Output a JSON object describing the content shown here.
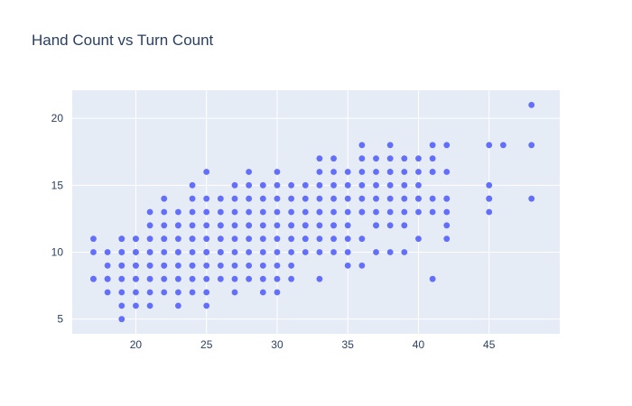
{
  "chart_data": {
    "type": "scatter",
    "title": "Hand Count vs Turn Count",
    "xlabel": "",
    "ylabel": "",
    "xlim": [
      15.5,
      50
    ],
    "ylim": [
      3.9,
      22.1
    ],
    "xticks": [
      20,
      25,
      30,
      35,
      40,
      45
    ],
    "yticks": [
      5,
      10,
      15,
      20
    ],
    "grid": true,
    "colors": {
      "marker": "#636efa",
      "plot_background": "#e5ecf6",
      "text": "#2a3f5f"
    },
    "x": [
      17,
      17,
      17,
      17,
      18,
      18,
      18,
      18,
      18,
      19,
      19,
      19,
      19,
      19,
      19,
      19,
      19,
      19,
      19,
      20,
      20,
      20,
      20,
      20,
      20,
      20,
      20,
      20,
      20,
      21,
      21,
      21,
      21,
      21,
      21,
      21,
      21,
      21,
      21,
      22,
      22,
      22,
      22,
      22,
      22,
      22,
      22,
      22,
      22,
      23,
      23,
      23,
      23,
      23,
      23,
      23,
      23,
      23,
      23,
      24,
      24,
      24,
      24,
      24,
      24,
      24,
      24,
      24,
      24,
      24,
      25,
      25,
      25,
      25,
      25,
      25,
      25,
      25,
      25,
      25,
      25,
      26,
      26,
      26,
      26,
      26,
      26,
      26,
      26,
      26,
      27,
      27,
      27,
      27,
      27,
      27,
      27,
      27,
      27,
      28,
      28,
      28,
      28,
      28,
      28,
      28,
      28,
      28,
      28,
      29,
      29,
      29,
      29,
      29,
      29,
      29,
      29,
      29,
      30,
      30,
      30,
      30,
      30,
      30,
      30,
      30,
      30,
      30,
      31,
      31,
      31,
      31,
      31,
      31,
      31,
      31,
      31,
      32,
      32,
      32,
      32,
      32,
      32,
      32,
      32,
      33,
      33,
      33,
      33,
      33,
      33,
      33,
      33,
      33,
      33,
      34,
      34,
      34,
      34,
      34,
      34,
      34,
      34,
      34,
      35,
      35,
      35,
      35,
      35,
      35,
      35,
      35,
      36,
      36,
      36,
      36,
      36,
      36,
      36,
      36,
      36,
      37,
      37,
      37,
      37,
      37,
      37,
      37,
      37,
      38,
      38,
      38,
      38,
      38,
      38,
      38,
      38,
      38,
      39,
      39,
      39,
      39,
      39,
      39,
      39,
      40,
      40,
      40,
      40,
      40,
      40,
      40,
      41,
      41,
      41,
      41,
      41,
      41,
      41,
      42,
      42,
      42,
      42,
      42,
      42,
      42,
      45,
      45,
      45,
      45,
      45,
      46,
      48,
      48,
      48
    ],
    "y": [
      8,
      10,
      11,
      8,
      7,
      8,
      9,
      10,
      8,
      5,
      6,
      7,
      8,
      9,
      10,
      11,
      11,
      10,
      9,
      6,
      7,
      8,
      9,
      10,
      11,
      11,
      10,
      9,
      8,
      6,
      7,
      8,
      9,
      10,
      11,
      12,
      13,
      9,
      10,
      7,
      8,
      9,
      10,
      11,
      12,
      13,
      14,
      11,
      9,
      6,
      7,
      8,
      9,
      10,
      11,
      12,
      13,
      12,
      10,
      7,
      8,
      9,
      10,
      11,
      12,
      13,
      14,
      15,
      9,
      11,
      6,
      7,
      8,
      9,
      10,
      11,
      12,
      13,
      14,
      16,
      10,
      8,
      9,
      10,
      11,
      12,
      13,
      14,
      10,
      12,
      7,
      8,
      9,
      10,
      11,
      12,
      13,
      14,
      15,
      8,
      9,
      10,
      11,
      12,
      13,
      14,
      15,
      16,
      12,
      7,
      8,
      9,
      10,
      11,
      12,
      13,
      14,
      15,
      7,
      8,
      9,
      10,
      11,
      12,
      13,
      14,
      15,
      16,
      8,
      9,
      10,
      11,
      12,
      13,
      14,
      15,
      12,
      10,
      11,
      12,
      13,
      14,
      15,
      11,
      12,
      8,
      10,
      11,
      12,
      13,
      14,
      15,
      16,
      17,
      13,
      10,
      11,
      12,
      13,
      14,
      15,
      16,
      17,
      12,
      9,
      10,
      11,
      12,
      13,
      14,
      15,
      16,
      9,
      11,
      13,
      14,
      15,
      16,
      17,
      18,
      13,
      10,
      12,
      13,
      14,
      15,
      16,
      17,
      12,
      10,
      12,
      13,
      14,
      15,
      16,
      17,
      18,
      16,
      10,
      12,
      13,
      14,
      15,
      16,
      17,
      11,
      13,
      14,
      15,
      16,
      17,
      14,
      8,
      13,
      14,
      16,
      17,
      18,
      16,
      11,
      12,
      13,
      14,
      16,
      18,
      14,
      13,
      14,
      15,
      18,
      14,
      18,
      14,
      18,
      21
    ]
  }
}
